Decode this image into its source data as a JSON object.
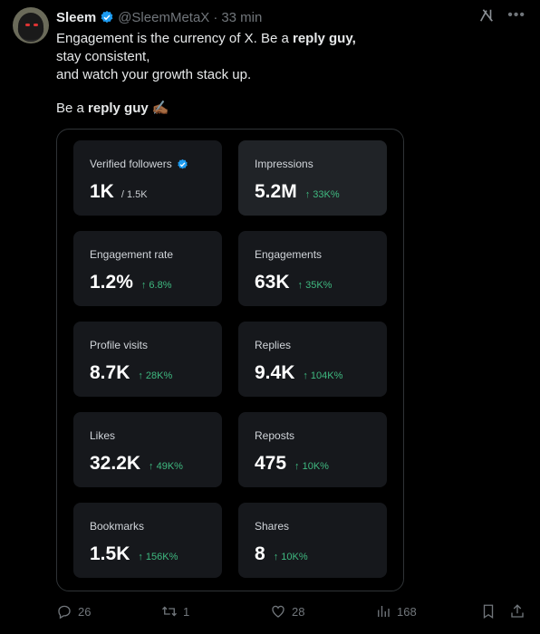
{
  "tweet": {
    "author_name": "Sleem",
    "handle": "@SleemMetaX",
    "separator": "·",
    "time": "33 min",
    "line1_a": "Engagement is the currency of X. Be a ",
    "line1_b": "reply guy",
    "line1_c": ",",
    "line2": "stay consistent,",
    "line3": "and watch your growth stack up.",
    "line4_a": "Be a ",
    "line4_b": "reply guy",
    "line4_emoji": "✍🏾"
  },
  "stats": [
    {
      "label": "Verified followers",
      "value": "1K",
      "sub": "/ 1.5K",
      "growth": ""
    },
    {
      "label": "Impressions",
      "value": "5.2M",
      "sub": "",
      "growth": "↑ 33K%"
    },
    {
      "label": "Engagement rate",
      "value": "1.2%",
      "sub": "",
      "growth": "↑ 6.8%"
    },
    {
      "label": "Engagements",
      "value": "63K",
      "sub": "",
      "growth": "↑ 35K%"
    },
    {
      "label": "Profile visits",
      "value": "8.7K",
      "sub": "",
      "growth": "↑ 28K%"
    },
    {
      "label": "Replies",
      "value": "9.4K",
      "sub": "",
      "growth": "↑ 104K%"
    },
    {
      "label": "Likes",
      "value": "32.2K",
      "sub": "",
      "growth": "↑ 49K%"
    },
    {
      "label": "Reposts",
      "value": "475",
      "sub": "",
      "growth": "↑ 10K%"
    },
    {
      "label": "Bookmarks",
      "value": "1.5K",
      "sub": "",
      "growth": "↑ 156K%"
    },
    {
      "label": "Shares",
      "value": "8",
      "sub": "",
      "growth": "↑ 10K%"
    }
  ],
  "actions": {
    "replies": "26",
    "reposts": "1",
    "likes": "28",
    "views": "168"
  },
  "colors": {
    "verified": "#1d9bf0",
    "growth": "#3fb980",
    "muted": "#71767b"
  },
  "icons": {
    "grok": "grok-icon",
    "more": "more-icon",
    "reply": "reply-icon",
    "repost": "repost-icon",
    "like": "heart-icon",
    "views": "views-icon",
    "bookmark": "bookmark-icon",
    "share": "share-icon"
  }
}
